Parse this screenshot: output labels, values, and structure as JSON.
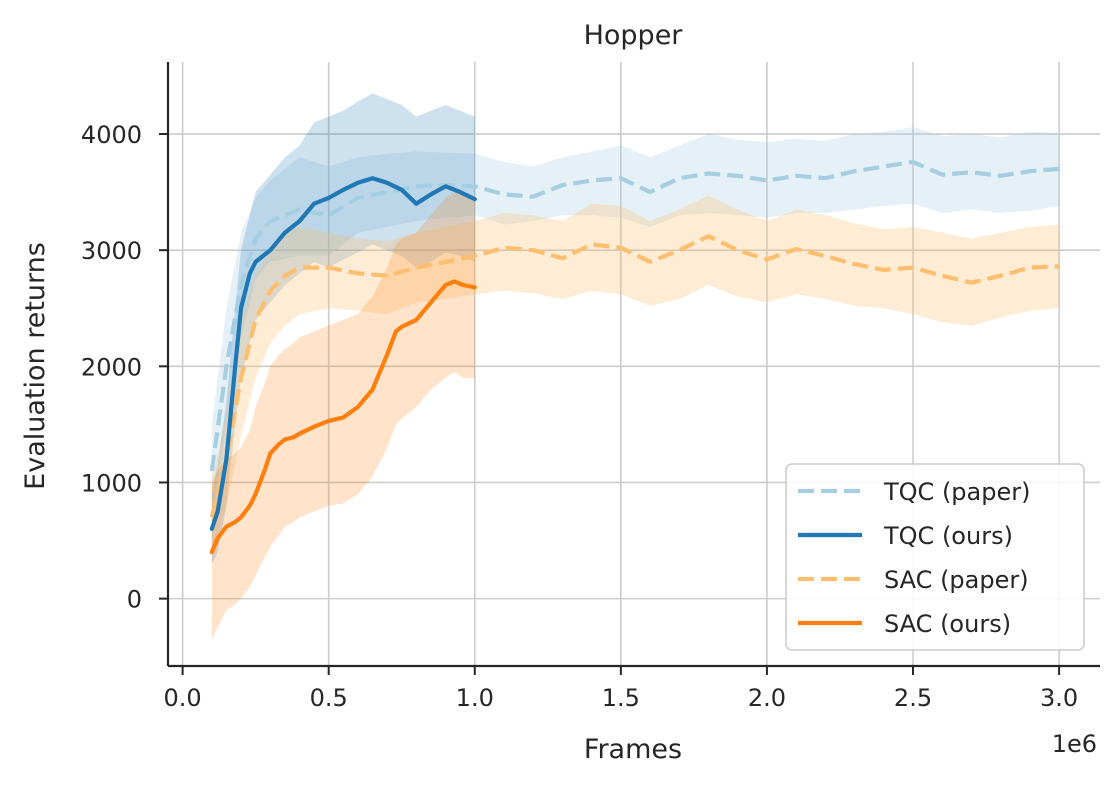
{
  "chart_data": {
    "type": "line",
    "title": "Hopper",
    "xlabel": "Frames",
    "ylabel": "Evaluation returns",
    "x_offset_label": "1e6",
    "xlim": [
      -0.05,
      3.14
    ],
    "ylim": [
      -580,
      4620
    ],
    "xticks": [
      0.0,
      0.5,
      1.0,
      1.5,
      2.0,
      2.5,
      3.0
    ],
    "xtick_labels": [
      "0.0",
      "0.5",
      "1.0",
      "1.5",
      "2.0",
      "2.5",
      "3.0"
    ],
    "yticks": [
      0,
      1000,
      2000,
      3000,
      4000
    ],
    "ytick_labels": [
      "0",
      "1000",
      "2000",
      "3000",
      "4000"
    ],
    "grid": true,
    "legend_position": "bottom-right",
    "series": [
      {
        "name": "TQC (paper)",
        "style": "dashed",
        "color": "#a6cee3",
        "band_color": "#a6cee3",
        "x": [
          0.1,
          0.15,
          0.2,
          0.25,
          0.3,
          0.4,
          0.5,
          0.6,
          0.7,
          0.8,
          0.9,
          1.0,
          1.1,
          1.2,
          1.3,
          1.4,
          1.5,
          1.6,
          1.7,
          1.8,
          1.9,
          2.0,
          2.1,
          2.2,
          2.3,
          2.4,
          2.5,
          2.6,
          2.7,
          2.8,
          2.9,
          3.0
        ],
        "y": [
          1100,
          2000,
          2700,
          3100,
          3250,
          3350,
          3300,
          3450,
          3500,
          3550,
          3560,
          3550,
          3480,
          3460,
          3560,
          3600,
          3620,
          3500,
          3620,
          3660,
          3640,
          3600,
          3640,
          3620,
          3680,
          3720,
          3760,
          3650,
          3670,
          3640,
          3680,
          3700
        ],
        "lower": [
          700,
          1500,
          2250,
          2750,
          2900,
          2950,
          2950,
          3150,
          3200,
          3250,
          3280,
          3300,
          3220,
          3250,
          3300,
          3300,
          3280,
          3200,
          3300,
          3320,
          3300,
          3280,
          3320,
          3320,
          3350,
          3380,
          3400,
          3320,
          3350,
          3320,
          3340,
          3380
        ],
        "upper": [
          1500,
          2500,
          3150,
          3450,
          3600,
          3800,
          3720,
          3800,
          3830,
          3850,
          3840,
          3830,
          3760,
          3720,
          3800,
          3850,
          3900,
          3800,
          3900,
          4000,
          3950,
          3930,
          3960,
          3940,
          4000,
          4020,
          4060,
          3980,
          4000,
          3970,
          4020,
          4010
        ]
      },
      {
        "name": "TQC (ours)",
        "style": "solid",
        "color": "#1f77b4",
        "band_color": "#1f77b4",
        "x": [
          0.1,
          0.12,
          0.15,
          0.18,
          0.2,
          0.23,
          0.25,
          0.3,
          0.35,
          0.4,
          0.45,
          0.5,
          0.55,
          0.6,
          0.65,
          0.7,
          0.75,
          0.8,
          0.85,
          0.9,
          0.95,
          1.0
        ],
        "y": [
          600,
          750,
          1200,
          2000,
          2500,
          2800,
          2900,
          3000,
          3150,
          3250,
          3400,
          3450,
          3520,
          3580,
          3620,
          3580,
          3520,
          3400,
          3480,
          3550,
          3500,
          3440
        ],
        "lower": [
          300,
          400,
          800,
          1500,
          1900,
          2200,
          2400,
          2550,
          2700,
          2800,
          2900,
          2850,
          2920,
          2980,
          3050,
          3000,
          2950,
          2850,
          2900,
          2980,
          2950,
          2900
        ],
        "upper": [
          900,
          1150,
          1700,
          2500,
          3000,
          3300,
          3500,
          3650,
          3800,
          3900,
          4100,
          4150,
          4200,
          4280,
          4350,
          4300,
          4250,
          4150,
          4200,
          4250,
          4200,
          4150
        ]
      },
      {
        "name": "SAC (paper)",
        "style": "dashed",
        "color": "#fdbf6f",
        "band_color": "#fdbf6f",
        "x": [
          0.1,
          0.15,
          0.2,
          0.25,
          0.3,
          0.35,
          0.4,
          0.5,
          0.6,
          0.7,
          0.8,
          0.9,
          1.0,
          1.1,
          1.2,
          1.3,
          1.4,
          1.5,
          1.6,
          1.7,
          1.8,
          1.9,
          2.0,
          2.1,
          2.2,
          2.3,
          2.4,
          2.5,
          2.6,
          2.7,
          2.8,
          2.9,
          3.0
        ],
        "y": [
          700,
          1200,
          1900,
          2400,
          2650,
          2780,
          2850,
          2850,
          2800,
          2780,
          2850,
          2900,
          2950,
          3020,
          3000,
          2930,
          3050,
          3020,
          2900,
          3000,
          3120,
          3000,
          2920,
          3010,
          2950,
          2880,
          2830,
          2850,
          2780,
          2720,
          2780,
          2850,
          2860
        ],
        "lower": [
          400,
          800,
          1400,
          1900,
          2200,
          2350,
          2450,
          2500,
          2480,
          2450,
          2550,
          2580,
          2620,
          2650,
          2630,
          2580,
          2650,
          2620,
          2520,
          2580,
          2700,
          2600,
          2550,
          2620,
          2580,
          2520,
          2500,
          2450,
          2380,
          2350,
          2420,
          2480,
          2500
        ],
        "upper": [
          1000,
          1600,
          2400,
          2800,
          3000,
          3150,
          3200,
          3150,
          3100,
          3080,
          3150,
          3200,
          3250,
          3320,
          3300,
          3250,
          3400,
          3380,
          3250,
          3350,
          3470,
          3350,
          3250,
          3350,
          3300,
          3230,
          3180,
          3200,
          3150,
          3100,
          3150,
          3200,
          3220
        ]
      },
      {
        "name": "SAC (ours)",
        "style": "solid",
        "color": "#ff7f0e",
        "band_color": "#ff7f0e",
        "x": [
          0.1,
          0.12,
          0.15,
          0.18,
          0.2,
          0.23,
          0.25,
          0.28,
          0.3,
          0.33,
          0.35,
          0.38,
          0.4,
          0.45,
          0.5,
          0.55,
          0.6,
          0.65,
          0.7,
          0.73,
          0.75,
          0.8,
          0.85,
          0.9,
          0.93,
          0.96,
          1.0
        ],
        "y": [
          400,
          520,
          620,
          660,
          700,
          800,
          900,
          1100,
          1250,
          1330,
          1370,
          1390,
          1420,
          1480,
          1530,
          1560,
          1650,
          1800,
          2100,
          2300,
          2340,
          2400,
          2550,
          2700,
          2730,
          2700,
          2680
        ],
        "lower": [
          -350,
          -250,
          -100,
          -50,
          0,
          100,
          200,
          350,
          450,
          550,
          620,
          660,
          700,
          750,
          800,
          820,
          900,
          1050,
          1300,
          1500,
          1550,
          1650,
          1800,
          1900,
          1950,
          1900,
          1900
        ],
        "upper": [
          1000,
          1100,
          1200,
          1250,
          1300,
          1450,
          1650,
          1850,
          2000,
          2100,
          2150,
          2200,
          2250,
          2300,
          2350,
          2400,
          2450,
          2600,
          2850,
          3050,
          3100,
          3150,
          3300,
          3450,
          3500,
          3480,
          3450
        ]
      }
    ]
  }
}
